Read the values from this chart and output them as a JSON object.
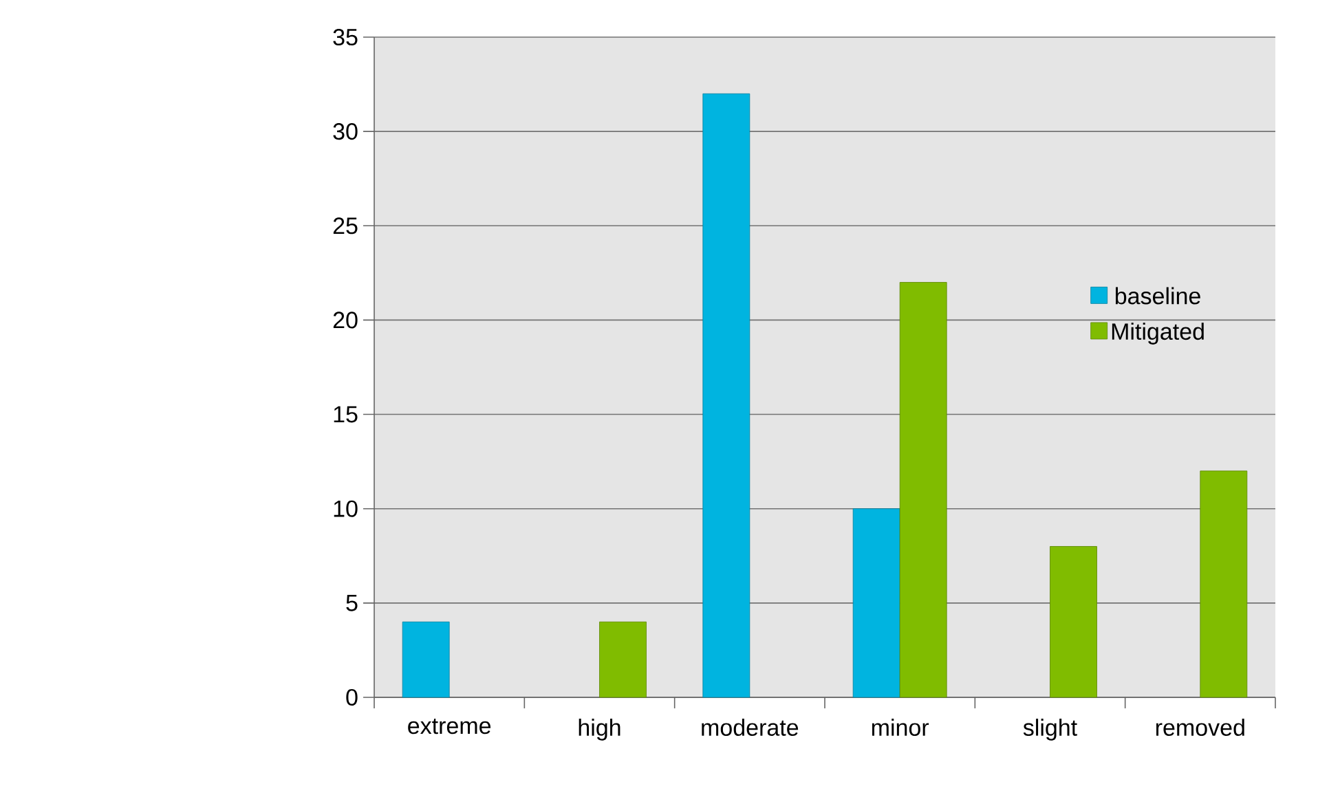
{
  "chart_data": {
    "type": "bar",
    "categories": [
      "extreme",
      "high",
      "moderate",
      "minor",
      "slight",
      "removed"
    ],
    "series": [
      {
        "name": "baseline",
        "color": "#00b4e0",
        "values": [
          4,
          null,
          32,
          10,
          null,
          null
        ]
      },
      {
        "name": "Mitigated",
        "color": "#80bc00",
        "values": [
          null,
          4,
          null,
          22,
          8,
          12
        ]
      }
    ],
    "ylim": [
      0,
      35
    ],
    "yticks": [
      0,
      5,
      10,
      15,
      20,
      25,
      30,
      35
    ],
    "grid": "y",
    "legend": "right"
  }
}
